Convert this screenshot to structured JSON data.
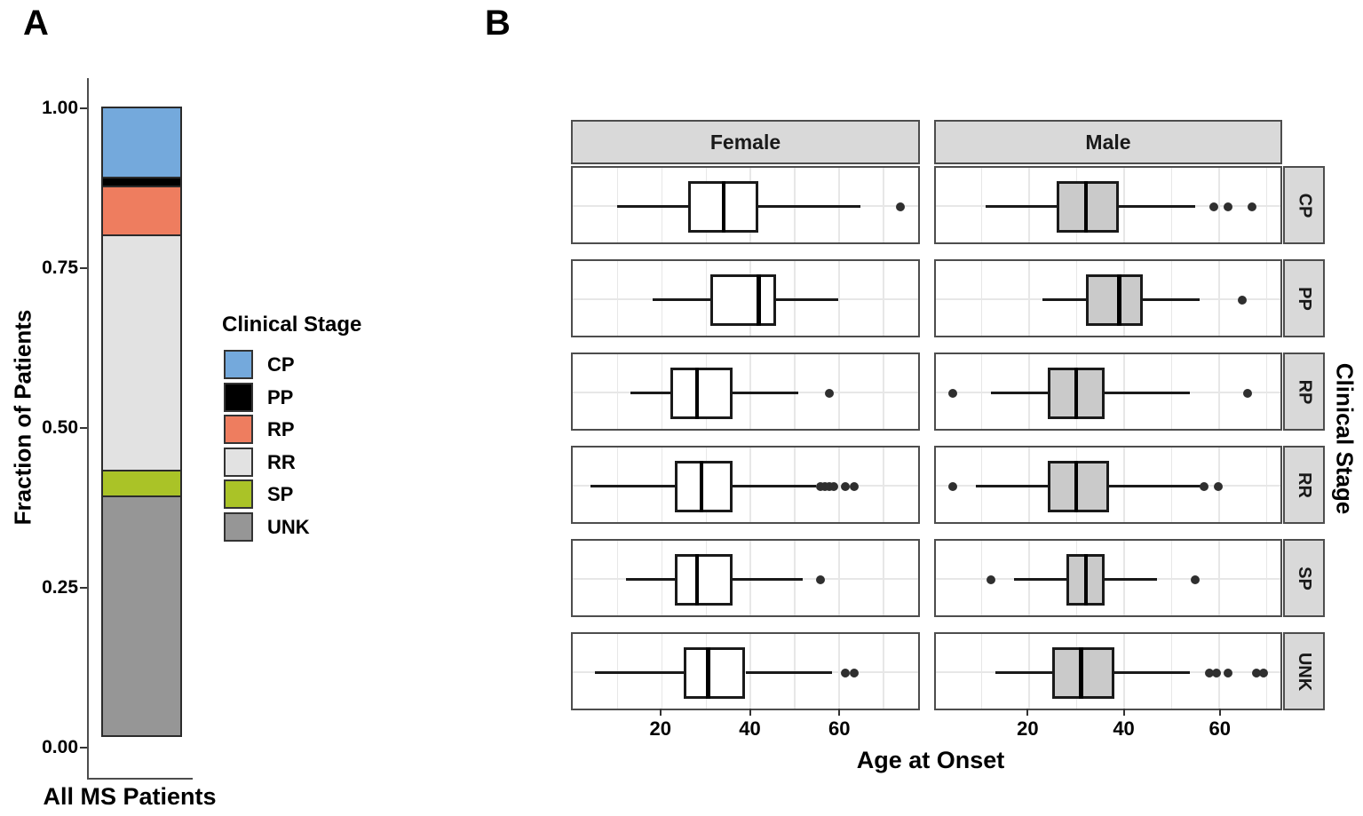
{
  "panel_a": {
    "label": "A",
    "y_axis_title": "Fraction of Patients",
    "x_label": "All MS Patients",
    "legend_title": "Clinical Stage",
    "y_ticks": [
      {
        "label": "1.00",
        "value": 1.0
      },
      {
        "label": "0.75",
        "value": 0.75
      },
      {
        "label": "0.50",
        "value": 0.5
      },
      {
        "label": "0.25",
        "value": 0.25
      },
      {
        "label": "0.00",
        "value": 0.0
      }
    ]
  },
  "panel_b": {
    "label": "B",
    "x_axis_title": "Age at Onset",
    "row_axis_title": "Clinical Stage",
    "column_headers": [
      "Female",
      "Male"
    ],
    "row_labels": [
      "CP",
      "PP",
      "RP",
      "RR",
      "SP",
      "UNK"
    ],
    "x_tick_labels": [
      "20",
      "40",
      "60"
    ]
  },
  "chart_data": [
    {
      "type": "bar",
      "subtype": "stacked_fraction",
      "title": "A",
      "xlabel": "All MS Patients",
      "ylabel": "Fraction of Patients",
      "categories": [
        "All MS Patients"
      ],
      "ylim": [
        0,
        1
      ],
      "yticks": [
        0.0,
        0.25,
        0.5,
        0.75,
        1.0
      ],
      "legend_title": "Clinical Stage",
      "legend_position": "right",
      "grid": false,
      "series": [
        {
          "name": "CP",
          "value": 0.112,
          "color": "#74A9DC"
        },
        {
          "name": "PP",
          "value": 0.017,
          "color": "#000000"
        },
        {
          "name": "RP",
          "value": 0.079,
          "color": "#EE7D5F"
        },
        {
          "name": "RR",
          "value": 0.371,
          "color": "#E2E2E2"
        },
        {
          "name": "SP",
          "value": 0.043,
          "color": "#AAC327"
        },
        {
          "name": "UNK",
          "value": 0.378,
          "color": "#969696"
        }
      ],
      "stack_order_bottom_to_top": [
        "UNK",
        "SP",
        "RR",
        "RP",
        "PP",
        "CP"
      ]
    },
    {
      "type": "boxplot",
      "orientation": "horizontal",
      "title": "B",
      "xlabel": "Age at Onset",
      "row_axis_label": "Clinical Stage",
      "facet_columns": [
        "Female",
        "Male"
      ],
      "facet_rows": [
        "CP",
        "PP",
        "RP",
        "RR",
        "SP",
        "UNK"
      ],
      "xticks": [
        20,
        40,
        60
      ],
      "gridlines_every": 10,
      "grid": true,
      "x_domains": {
        "Female": [
          0,
          78
        ],
        "Male": [
          0.5,
          73
        ]
      },
      "box_fill": {
        "Female": "#FFFFFF",
        "Male": "#CACACA"
      },
      "boxes": [
        {
          "sex": "Female",
          "stage": "CP",
          "min": 10,
          "q1": 26,
          "median": 34,
          "q3": 42,
          "max": 65,
          "outliers": [
            74
          ]
        },
        {
          "sex": "Female",
          "stage": "PP",
          "min": 18,
          "q1": 31,
          "median": 42,
          "q3": 46,
          "max": 60,
          "outliers": []
        },
        {
          "sex": "Female",
          "stage": "RP",
          "min": 13,
          "q1": 22,
          "median": 28,
          "q3": 36,
          "max": 51,
          "outliers": [
            58
          ]
        },
        {
          "sex": "Female",
          "stage": "RR",
          "min": 4,
          "q1": 23,
          "median": 29,
          "q3": 36,
          "max": 55,
          "outliers": [
            56,
            57,
            58,
            59,
            61.5,
            63.5
          ]
        },
        {
          "sex": "Female",
          "stage": "SP",
          "min": 12,
          "q1": 23,
          "median": 28,
          "q3": 36,
          "max": 52,
          "outliers": [
            56
          ]
        },
        {
          "sex": "Female",
          "stage": "UNK",
          "min": 5,
          "q1": 25,
          "median": 30.5,
          "q3": 39,
          "max": 58.5,
          "outliers": [
            61.5,
            63.5
          ]
        },
        {
          "sex": "Male",
          "stage": "CP",
          "min": 11,
          "q1": 26,
          "median": 32,
          "q3": 39,
          "max": 55,
          "outliers": [
            59,
            62,
            67
          ]
        },
        {
          "sex": "Male",
          "stage": "PP",
          "min": 23,
          "q1": 32,
          "median": 39,
          "q3": 44,
          "max": 56,
          "outliers": [
            65
          ]
        },
        {
          "sex": "Male",
          "stage": "RP",
          "min": 12,
          "q1": 24,
          "median": 30,
          "q3": 36,
          "max": 54,
          "outliers": [
            4,
            66
          ]
        },
        {
          "sex": "Male",
          "stage": "RR",
          "min": 9,
          "q1": 24,
          "median": 30,
          "q3": 37,
          "max": 56.5,
          "outliers": [
            4,
            57,
            60
          ]
        },
        {
          "sex": "Male",
          "stage": "SP",
          "min": 17,
          "q1": 28,
          "median": 32,
          "q3": 36,
          "max": 47,
          "outliers": [
            12,
            55
          ]
        },
        {
          "sex": "Male",
          "stage": "UNK",
          "min": 13,
          "q1": 25,
          "median": 31,
          "q3": 38,
          "max": 54,
          "outliers": [
            58,
            59.5,
            62,
            68,
            69.5
          ]
        }
      ]
    }
  ]
}
